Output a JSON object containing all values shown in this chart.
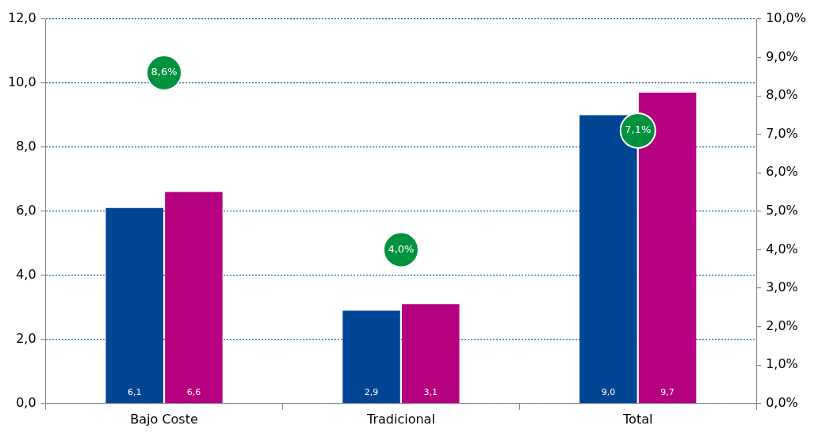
{
  "chart_data": {
    "type": "bar",
    "categories": [
      "Bajo Coste",
      "Tradicional",
      "Total"
    ],
    "series": [
      {
        "color": "#004494",
        "values": [
          6.1,
          2.9,
          9.0
        ],
        "value_labels": [
          "6,1",
          "2,9",
          "9,0"
        ]
      },
      {
        "color": "#b5007f",
        "values": [
          6.6,
          3.1,
          9.7
        ],
        "value_labels": [
          "6,6",
          "3,1",
          "9,7"
        ]
      },
      {
        "type": "scatter",
        "axis": "y2",
        "color": "#00923f",
        "marker": "circle",
        "x": [
          "Bajo Coste",
          "Tradicional",
          "Total"
        ],
        "values": [
          8.6,
          4.0,
          7.1
        ],
        "value_labels": [
          "8,6%",
          "4,0%",
          "7,1%"
        ]
      }
    ],
    "ylim": [
      0,
      12
    ],
    "yticks": [
      {
        "value": 0,
        "label": "0,0"
      },
      {
        "value": 2,
        "label": "2,0"
      },
      {
        "value": 4,
        "label": "4,0"
      },
      {
        "value": 6,
        "label": "6,0"
      },
      {
        "value": 8,
        "label": "8,0"
      },
      {
        "value": 10,
        "label": "10,0"
      },
      {
        "value": 12,
        "label": "12,0"
      }
    ],
    "y2lim": [
      0,
      10
    ],
    "y2ticks": [
      {
        "value": 0,
        "label": "0,0%"
      },
      {
        "value": 1,
        "label": "1,0%"
      },
      {
        "value": 2,
        "label": "2,0%"
      },
      {
        "value": 3,
        "label": "3,0%"
      },
      {
        "value": 4,
        "label": "4,0%"
      },
      {
        "value": 5,
        "label": "5,0%"
      },
      {
        "value": 6,
        "label": "6,0%"
      },
      {
        "value": 7,
        "label": "7,0%"
      },
      {
        "value": 8,
        "label": "8,0%"
      },
      {
        "value": 9,
        "label": "9,0%"
      },
      {
        "value": 10,
        "label": "10,0%"
      }
    ],
    "grid": "y",
    "legend": false
  }
}
